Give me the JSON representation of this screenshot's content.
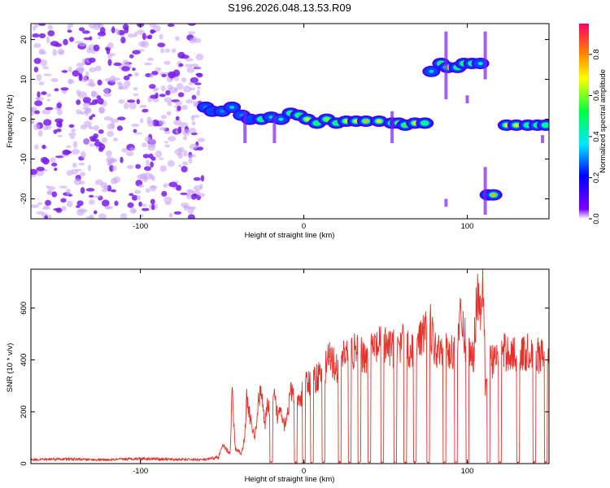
{
  "title": "S196.2026.048.13.53.R09",
  "chart_data": [
    {
      "type": "heatmap",
      "xlabel": "Height of straight line (km)",
      "ylabel": "Frequency (Hz)",
      "xlim": [
        -167,
        150
      ],
      "ylim": [
        -25,
        24
      ],
      "xticks": [
        "-100",
        "0",
        "100"
      ],
      "yticks": [
        "-20",
        "-10",
        "0",
        "10",
        "20"
      ],
      "colorbar": {
        "label": "Normalized spectral amplitude",
        "range": [
          0,
          0.95
        ],
        "ticks": [
          "0.0",
          "0.2",
          "0.4",
          "0.6",
          "0.8"
        ]
      },
      "noise_region_x": [
        -167,
        -62
      ],
      "ridge": [
        {
          "x": -60,
          "y": 3,
          "a": 0.35
        },
        {
          "x": -56,
          "y": 2,
          "a": 0.3
        },
        {
          "x": -50,
          "y": 2,
          "a": 0.35
        },
        {
          "x": -44,
          "y": 3,
          "a": 0.4
        },
        {
          "x": -38,
          "y": 1,
          "a": 0.35
        },
        {
          "x": -33,
          "y": 0,
          "a": 0.3
        },
        {
          "x": -26,
          "y": 0,
          "a": 0.5
        },
        {
          "x": -20,
          "y": 0.5,
          "a": 0.4
        },
        {
          "x": -14,
          "y": 0,
          "a": 0.45
        },
        {
          "x": -8,
          "y": 1.5,
          "a": 0.5
        },
        {
          "x": -3,
          "y": 1,
          "a": 0.55
        },
        {
          "x": 2,
          "y": 0,
          "a": 0.7
        },
        {
          "x": 8,
          "y": -1,
          "a": 0.55
        },
        {
          "x": 14,
          "y": 0,
          "a": 0.65
        },
        {
          "x": 20,
          "y": -1,
          "a": 0.55
        },
        {
          "x": 26,
          "y": -0.5,
          "a": 0.7
        },
        {
          "x": 32,
          "y": -0.5,
          "a": 0.75
        },
        {
          "x": 38,
          "y": -0.5,
          "a": 0.8
        },
        {
          "x": 46,
          "y": -0.5,
          "a": 0.75
        },
        {
          "x": 54,
          "y": -1,
          "a": 0.6
        },
        {
          "x": 58,
          "y": -1,
          "a": 0.7
        },
        {
          "x": 62,
          "y": -1.5,
          "a": 0.6
        },
        {
          "x": 68,
          "y": -1,
          "a": 0.75
        },
        {
          "x": 74,
          "y": -1,
          "a": 0.5
        },
        {
          "x": 78,
          "y": 12,
          "a": 0.4
        },
        {
          "x": 84,
          "y": 14,
          "a": 0.55
        },
        {
          "x": 88,
          "y": 13,
          "a": 0.7
        },
        {
          "x": 94,
          "y": 13,
          "a": 0.55
        },
        {
          "x": 98,
          "y": 14,
          "a": 0.6
        },
        {
          "x": 103,
          "y": 14,
          "a": 0.5
        },
        {
          "x": 108,
          "y": 14,
          "a": 0.45
        },
        {
          "x": 113,
          "y": -19,
          "a": 0.85
        },
        {
          "x": 116,
          "y": -19,
          "a": 0.8
        },
        {
          "x": 124,
          "y": -1.5,
          "a": 0.7
        },
        {
          "x": 130,
          "y": -1.5,
          "a": 0.75
        },
        {
          "x": 137,
          "y": -1.5,
          "a": 0.5
        },
        {
          "x": 143,
          "y": -1.5,
          "a": 0.55
        },
        {
          "x": 148,
          "y": -1.5,
          "a": 0.5
        }
      ]
    },
    {
      "type": "line",
      "xlabel": "Height of straight line (km)",
      "ylabel": "SNR (10 * v/v)",
      "xlim": [
        -167,
        150
      ],
      "ylim": [
        0,
        750
      ],
      "xticks": [
        "-100",
        "0",
        "100"
      ],
      "yticks": [
        "0",
        "200",
        "400",
        "600"
      ],
      "color": "#e8302a",
      "x": [
        -167,
        -150,
        -120,
        -100,
        -80,
        -60,
        -52,
        -50,
        -45,
        -44,
        -42,
        -40,
        -38,
        -36,
        -35,
        -32,
        -30,
        -28,
        -26,
        -24,
        -22,
        -20,
        -18,
        -16,
        -14,
        -12,
        -10,
        -8,
        -6,
        -4,
        -2,
        0,
        4,
        8,
        12,
        16,
        20,
        24,
        30,
        36,
        42,
        48,
        54,
        60,
        66,
        72,
        76,
        80,
        86,
        90,
        96,
        100,
        104,
        106,
        108,
        110,
        111,
        112,
        114,
        116,
        120,
        125,
        130,
        135,
        140,
        145,
        150
      ],
      "values": [
        15,
        18,
        14,
        20,
        16,
        15,
        25,
        70,
        40,
        290,
        60,
        50,
        40,
        120,
        260,
        150,
        100,
        230,
        310,
        140,
        240,
        200,
        260,
        180,
        230,
        150,
        200,
        280,
        260,
        230,
        250,
        300,
        320,
        340,
        380,
        410,
        380,
        430,
        440,
        420,
        450,
        460,
        450,
        470,
        440,
        480,
        600,
        450,
        470,
        420,
        560,
        450,
        430,
        690,
        600,
        760,
        300,
        380,
        420,
        400,
        430,
        440,
        420,
        430,
        440,
        420,
        410
      ],
      "dropouts_x": [
        -20,
        -5,
        0,
        5,
        12,
        22,
        28,
        34,
        40,
        48,
        56,
        62,
        68,
        76,
        86,
        93,
        100,
        113,
        120,
        131,
        141,
        148
      ]
    }
  ]
}
